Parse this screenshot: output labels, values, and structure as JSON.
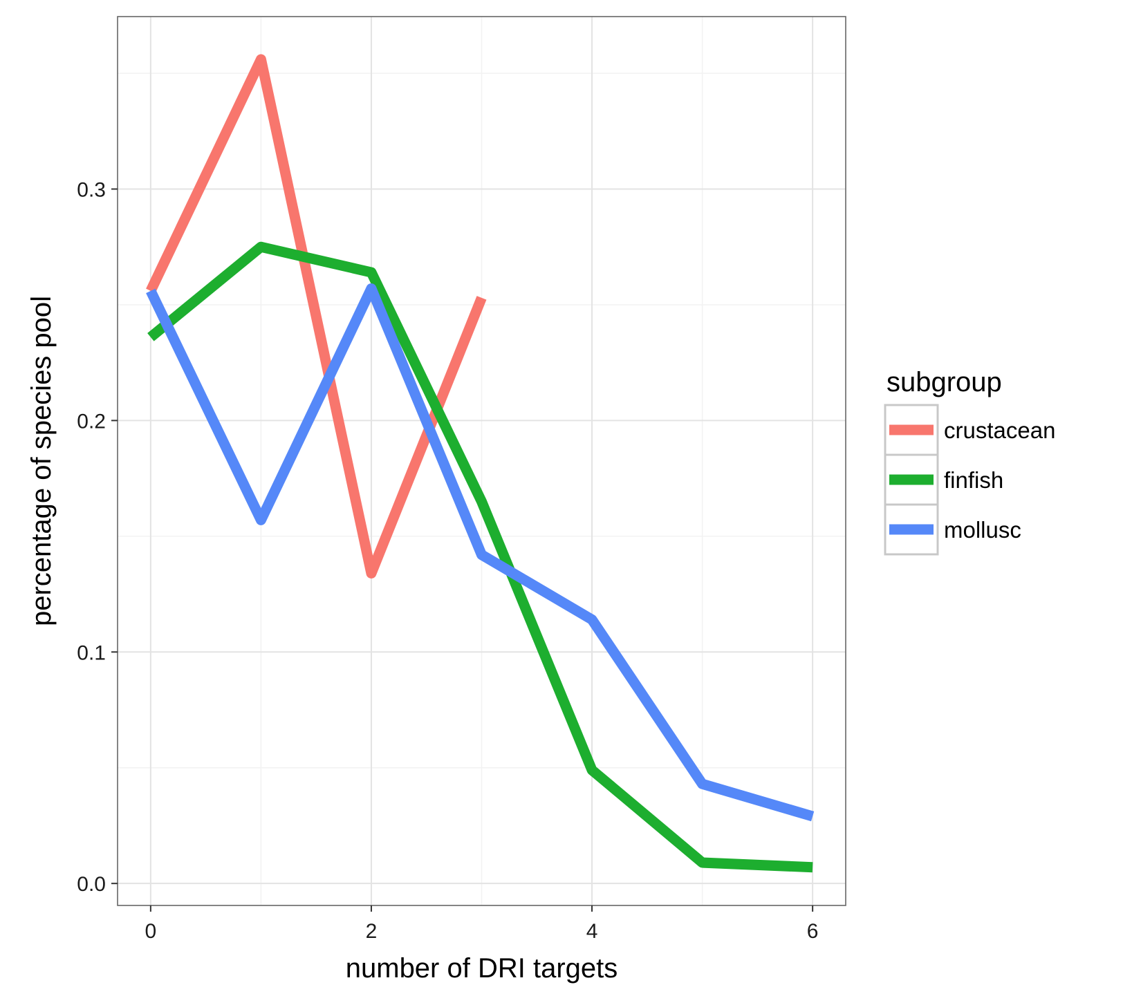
{
  "chart_data": {
    "type": "line",
    "xlabel": "number of DRI targets",
    "ylabel": "percentage of species pool",
    "xlim": [
      -0.3,
      6.3
    ],
    "ylim": [
      -0.0095,
      0.3745
    ],
    "x_ticks": [
      0,
      2,
      4,
      6
    ],
    "x_tick_labels": [
      "0",
      "2",
      "4",
      "6"
    ],
    "y_ticks": [
      0.0,
      0.1,
      0.2,
      0.3
    ],
    "y_tick_labels": [
      "0.0",
      "0.1",
      "0.2",
      "0.3"
    ],
    "grid": true,
    "legend": {
      "title": "subgroup",
      "position": "right"
    },
    "series": [
      {
        "name": "crustacean",
        "color": "#F8766D",
        "x": [
          0,
          1,
          2,
          3
        ],
        "y": [
          0.256,
          0.356,
          0.134,
          0.253
        ]
      },
      {
        "name": "finfish",
        "color": "#1DAE2F",
        "x": [
          0,
          1,
          2,
          3,
          4,
          5,
          6
        ],
        "y": [
          0.236,
          0.275,
          0.264,
          0.165,
          0.049,
          0.009,
          0.007
        ]
      },
      {
        "name": "mollusc",
        "color": "#5588F8",
        "x": [
          0,
          1,
          2,
          3,
          4,
          5,
          6
        ],
        "y": [
          0.256,
          0.157,
          0.257,
          0.142,
          0.114,
          0.043,
          0.029
        ]
      }
    ]
  }
}
